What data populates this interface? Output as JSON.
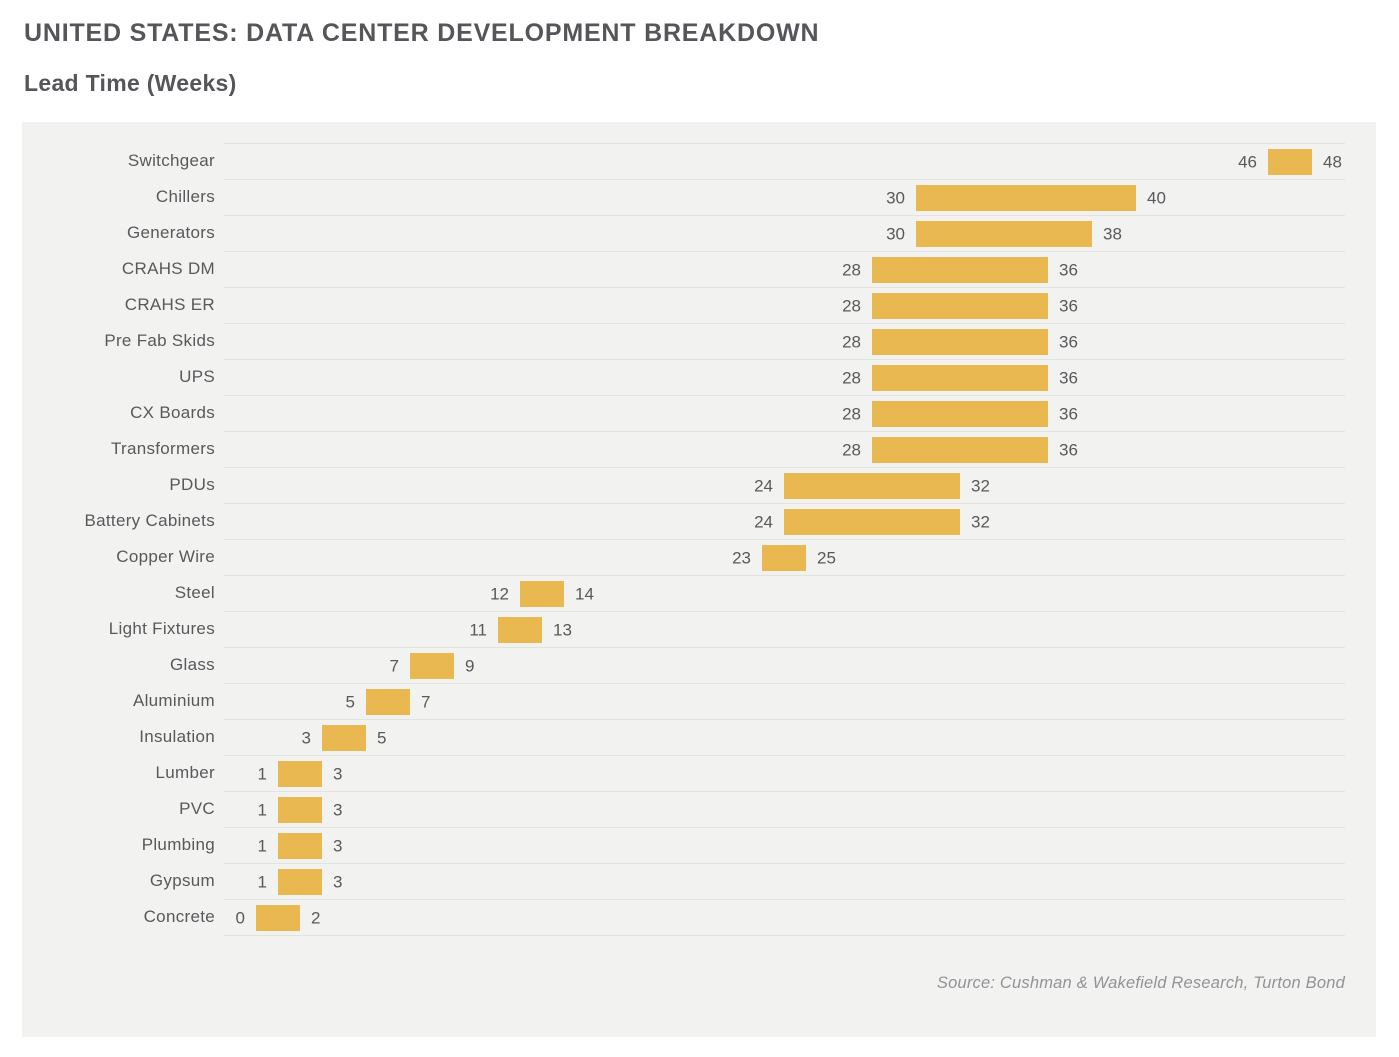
{
  "chart_data": {
    "type": "bar",
    "subtype": "horizontal-range",
    "title": "UNITED STATES: DATA CENTER DEVELOPMENT BREAKDOWN",
    "subtitle": "Lead Time (Weeks)",
    "xlabel": "Lead Time (Weeks)",
    "value_unit": "weeks",
    "xlim": [
      0,
      48
    ],
    "grid": "row-separator-lines",
    "legend": "none",
    "bar_color": "#E9B851",
    "panel_bg": "#F2F2F1",
    "grid_color": "#E2E2E0",
    "text_color": "#58595B",
    "items": [
      {
        "label": "Switchgear",
        "start": 46,
        "end": 48
      },
      {
        "label": "Chillers",
        "start": 30,
        "end": 40
      },
      {
        "label": "Generators",
        "start": 30,
        "end": 38
      },
      {
        "label": "CRAHS DM",
        "start": 28,
        "end": 36
      },
      {
        "label": "CRAHS ER",
        "start": 28,
        "end": 36
      },
      {
        "label": "Pre Fab Skids",
        "start": 28,
        "end": 36
      },
      {
        "label": "UPS",
        "start": 28,
        "end": 36
      },
      {
        "label": "CX Boards",
        "start": 28,
        "end": 36
      },
      {
        "label": "Transformers",
        "start": 28,
        "end": 36
      },
      {
        "label": "PDUs",
        "start": 24,
        "end": 32
      },
      {
        "label": "Battery Cabinets",
        "start": 24,
        "end": 32
      },
      {
        "label": "Copper Wire",
        "start": 23,
        "end": 25
      },
      {
        "label": "Steel",
        "start": 12,
        "end": 14
      },
      {
        "label": "Light Fixtures",
        "start": 11,
        "end": 13
      },
      {
        "label": "Glass",
        "start": 7,
        "end": 9
      },
      {
        "label": "Aluminium",
        "start": 5,
        "end": 7
      },
      {
        "label": "Insulation",
        "start": 3,
        "end": 5
      },
      {
        "label": "Lumber",
        "start": 1,
        "end": 3
      },
      {
        "label": "PVC",
        "start": 1,
        "end": 3
      },
      {
        "label": "Plumbing",
        "start": 1,
        "end": 3
      },
      {
        "label": "Gypsum",
        "start": 1,
        "end": 3
      },
      {
        "label": "Concrete",
        "start": 0,
        "end": 2
      }
    ],
    "source": "Source: Cushman & Wakefield Research, Turton Bond"
  }
}
